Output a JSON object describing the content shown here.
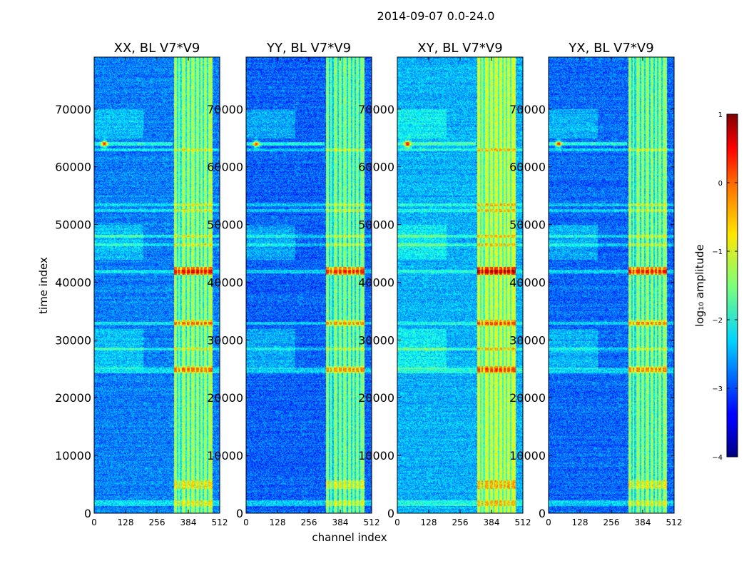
{
  "figure_title": "2014-09-07 0.0-24.0",
  "chart_data": {
    "type": "heatmap",
    "title": "2014-09-07 0.0-24.0",
    "xlabel": "channel index",
    "ylabel": "time index",
    "x_range": [
      0,
      512
    ],
    "y_range": [
      0,
      79000
    ],
    "x_ticks": [
      0,
      128,
      256,
      384,
      512
    ],
    "y_ticks": [
      0,
      10000,
      20000,
      30000,
      40000,
      50000,
      60000,
      70000
    ],
    "colorbar": {
      "label": "log₁₀ amplitude",
      "range": [
        -4,
        1
      ],
      "ticks": [
        1,
        0,
        -1,
        -2,
        -3,
        -4
      ],
      "tick_labels": [
        "1",
        "0",
        "−1",
        "−2",
        "−3",
        "−4"
      ],
      "colormap": "jet"
    },
    "panels": [
      {
        "name": "XX, BL V7*V9",
        "level_offset": 0.0,
        "flare": {
          "channel": 40,
          "time": 64000
        }
      },
      {
        "name": "YY, BL V7*V9",
        "level_offset": -0.15,
        "flare": {
          "channel": 40,
          "time": 64000
        }
      },
      {
        "name": "XY, BL V7*V9",
        "level_offset": 0.25,
        "flare": {
          "channel": 40,
          "time": 64000
        }
      },
      {
        "name": "YX, BL V7*V9",
        "level_offset": -0.1,
        "flare": {
          "channel": 40,
          "time": 64000
        }
      }
    ],
    "rfi_channel_band": [
      325,
      480
    ],
    "rfi_channels": [
      340,
      352,
      375,
      392,
      412,
      428,
      445,
      460
    ],
    "strong_time_bands": [
      1500,
      2000,
      24500,
      25000,
      28500,
      33000,
      41800,
      42000,
      46500,
      48000,
      52500,
      53500,
      63000
    ]
  }
}
